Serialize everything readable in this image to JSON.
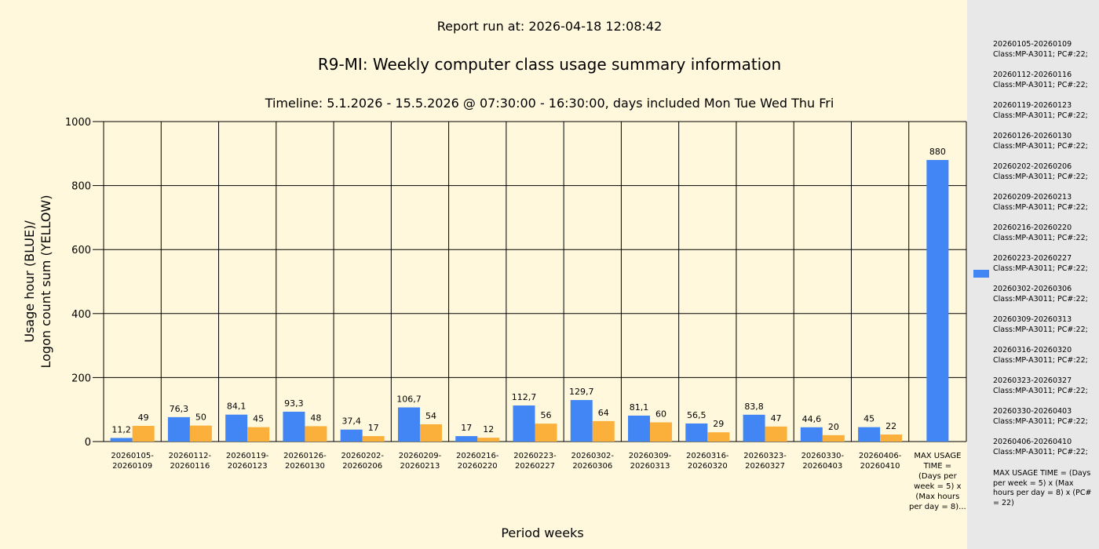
{
  "report_run": "Report run at: 2026-04-18 12:08:42",
  "colors": {
    "usage": "#4285f4",
    "logon": "#fbb03b",
    "background": "#fff8dc",
    "legend_bg": "#e8e8e8"
  },
  "chart_data": {
    "type": "bar",
    "title": "R9-MI: Weekly computer class usage summary information",
    "subtitle": "Timeline:  5.1.2026  - 15.5.2026  @  07:30:00 -  16:30:00, days included Mon Tue Wed Thu Fri",
    "xlabel": "Period weeks",
    "ylabel_line1": "Usage hour (BLUE)/",
    "ylabel_line2": "Logon count sum (YELLOW)",
    "ylim": [
      0,
      1000
    ],
    "yticks": [
      0,
      200,
      400,
      600,
      800,
      1000
    ],
    "grid": true,
    "legend_position": "right",
    "categories": [
      [
        "20260105-",
        "20260109"
      ],
      [
        "20260112-",
        "20260116"
      ],
      [
        "20260119-",
        "20260123"
      ],
      [
        "20260126-",
        "20260130"
      ],
      [
        "20260202-",
        "20260206"
      ],
      [
        "20260209-",
        "20260213"
      ],
      [
        "20260216-",
        "20260220"
      ],
      [
        "20260223-",
        "20260227"
      ],
      [
        "20260302-",
        "20260306"
      ],
      [
        "20260309-",
        "20260313"
      ],
      [
        "20260316-",
        "20260320"
      ],
      [
        "20260323-",
        "20260327"
      ],
      [
        "20260330-",
        "20260403"
      ],
      [
        "20260406-",
        "20260410"
      ],
      [
        "MAX USAGE",
        "TIME =",
        "(Days per",
        "week = 5) x",
        "(Max hours",
        "per day = 8)..."
      ]
    ],
    "series": [
      {
        "color": "#4285f4",
        "values": [
          11.2,
          76.3,
          84.1,
          93.3,
          37.4,
          106.7,
          17,
          112.7,
          129.7,
          81.1,
          56.5,
          83.8,
          44.6,
          45,
          880
        ],
        "labels": [
          "11,2",
          "76,3",
          "84,1",
          "93,3",
          "37,4",
          "106,7",
          "17",
          "112,7",
          "129,7",
          "81,1",
          "56,5",
          "83,8",
          "44,6",
          "45",
          "880"
        ]
      },
      {
        "color": "#fbb03b",
        "values": [
          49,
          50,
          45,
          48,
          17,
          54,
          12,
          56,
          64,
          60,
          29,
          47,
          20,
          22,
          null
        ],
        "labels": [
          "49",
          "50",
          "45",
          "48",
          "17",
          "54",
          "12",
          "56",
          "64",
          "60",
          "29",
          "47",
          "20",
          "22",
          ""
        ]
      }
    ]
  },
  "legend": {
    "entries": [
      {
        "period": "20260105-20260109",
        "detail": "Class:MP-A3011; PC#:22;"
      },
      {
        "period": "20260112-20260116",
        "detail": "Class:MP-A3011; PC#:22;"
      },
      {
        "period": "20260119-20260123",
        "detail": "Class:MP-A3011; PC#:22;"
      },
      {
        "period": "20260126-20260130",
        "detail": "Class:MP-A3011; PC#:22;"
      },
      {
        "period": "20260202-20260206",
        "detail": "Class:MP-A3011; PC#:22;"
      },
      {
        "period": "20260209-20260213",
        "detail": "Class:MP-A3011; PC#:22;"
      },
      {
        "period": "20260216-20260220",
        "detail": "Class:MP-A3011; PC#:22;"
      },
      {
        "period": "20260223-20260227",
        "detail": "Class:MP-A3011; PC#:22;"
      },
      {
        "period": "20260302-20260306",
        "detail": "Class:MP-A3011; PC#:22;"
      },
      {
        "period": "20260309-20260313",
        "detail": "Class:MP-A3011; PC#:22;"
      },
      {
        "period": "20260316-20260320",
        "detail": "Class:MP-A3011; PC#:22;"
      },
      {
        "period": "20260323-20260327",
        "detail": "Class:MP-A3011; PC#:22;"
      },
      {
        "period": "20260330-20260403",
        "detail": "Class:MP-A3011; PC#:22;"
      },
      {
        "period": "20260406-20260410",
        "detail": "Class:MP-A3011; PC#:22;"
      }
    ],
    "max_usage_text": "MAX USAGE TIME = (Days per week = 5) x (Max hours per day = 8) x (PC# = 22)"
  }
}
